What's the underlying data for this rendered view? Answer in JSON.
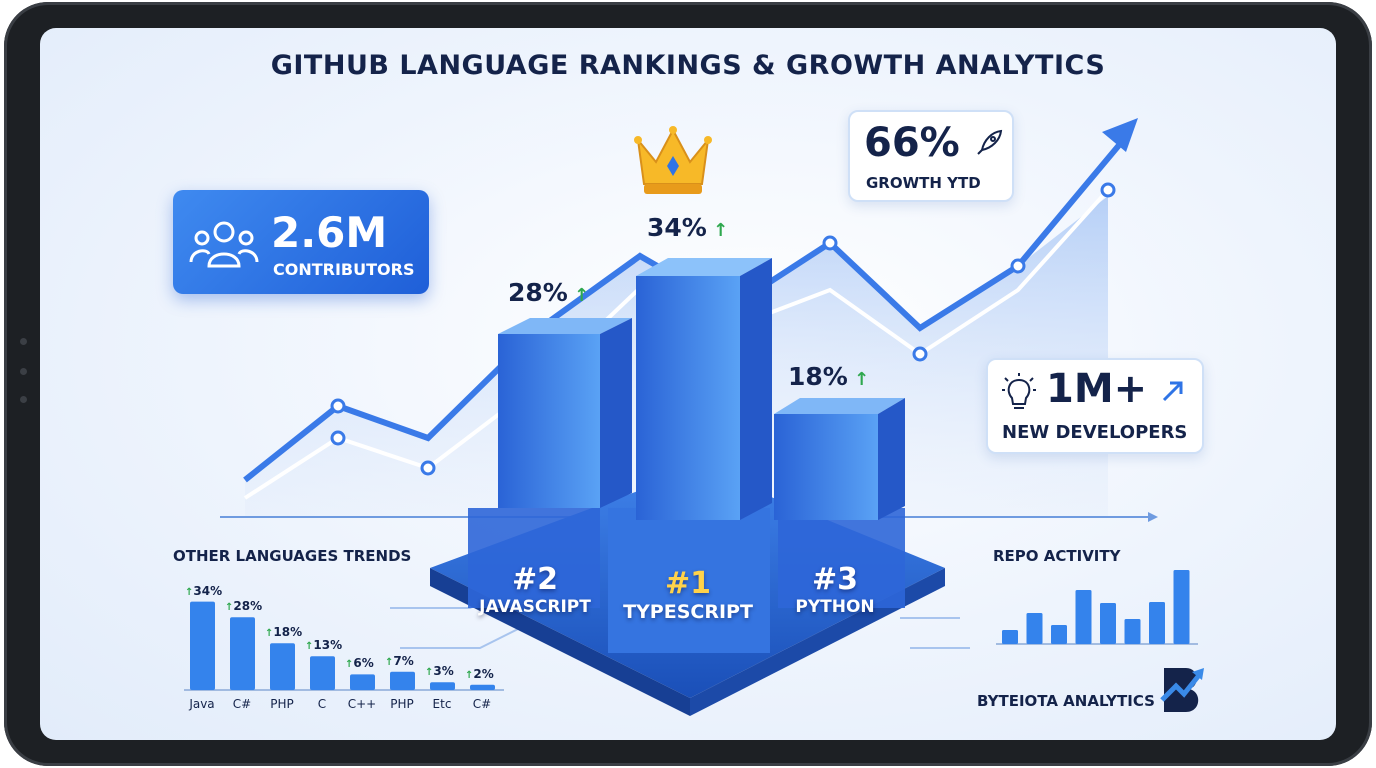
{
  "title": "GITHUB LANGUAGE RANKINGS & GROWTH ANALYTICS",
  "stats": {
    "contributors": {
      "value": "2.6M",
      "label": "CONTRIBUTORS",
      "icon": "users-icon"
    },
    "growth": {
      "value": "66%",
      "label": "GROWTH YTD",
      "icon": "rocket-icon"
    },
    "new_devs": {
      "value": "1M+",
      "label": "NEW DEVELOPERS",
      "icon": "lightbulb-icon"
    }
  },
  "podium": [
    {
      "rank": "#2",
      "language": "JAVASCRIPT",
      "share": "28%"
    },
    {
      "rank": "#1",
      "language": "TYPESCRIPT",
      "share": "34%"
    },
    {
      "rank": "#3",
      "language": "PYTHON",
      "share": "18%"
    }
  ],
  "colors": {
    "navy": "#14234a",
    "blue": "#2f74e6",
    "up": "#2fa84f"
  },
  "chart_data": [
    {
      "type": "bar",
      "title": "OTHER LANGUAGES TRENDS",
      "categories": [
        "Java",
        "C#",
        "PHP",
        "C",
        "C++",
        "PHP",
        "Etc",
        "C#"
      ],
      "values": [
        34,
        28,
        18,
        13,
        6,
        7,
        3,
        2
      ],
      "labels": [
        "34%",
        "28%",
        "18%",
        "13%",
        "6%",
        "7%",
        "3%",
        "2%"
      ]
    },
    {
      "type": "bar",
      "title": "REPO ACTIVITY",
      "values": [
        14,
        31,
        19,
        54,
        41,
        25,
        42,
        74
      ]
    }
  ],
  "footer": {
    "brand": "BYTEIOTA ANALYTICS"
  }
}
